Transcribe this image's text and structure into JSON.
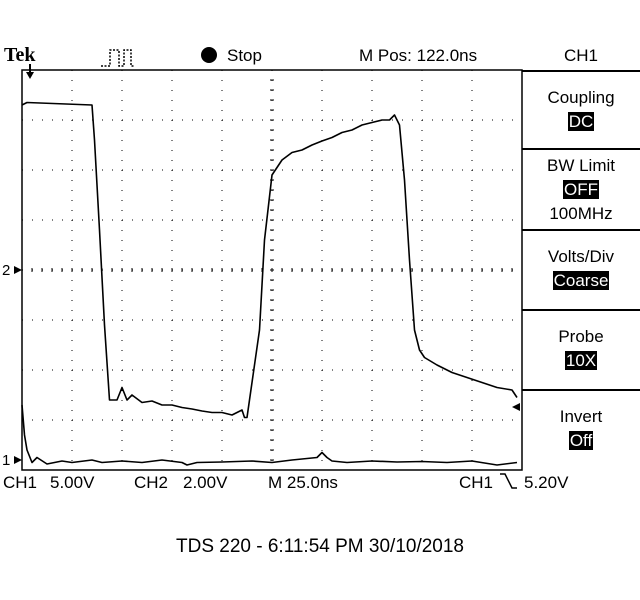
{
  "header": {
    "brand": "Tek",
    "run_state": "Stop",
    "m_pos": "M Pos: 122.0ns",
    "channel": "CH1"
  },
  "menu": [
    {
      "title": "Coupling",
      "value": "DC",
      "sub": ""
    },
    {
      "title": "BW Limit",
      "value": "OFF",
      "sub": "100MHz"
    },
    {
      "title": "Volts/Div",
      "value": "Coarse",
      "sub": ""
    },
    {
      "title": "Probe",
      "value": "10X",
      "sub": ""
    },
    {
      "title": "Invert",
      "value": "Off",
      "sub": ""
    }
  ],
  "markers": {
    "ch2_ref": "2",
    "ch1_ref": "1"
  },
  "footer": {
    "ch1_label": "CH1",
    "ch1_scale": "5.00V",
    "ch2_label": "CH2",
    "ch2_scale": "2.00V",
    "timebase": "M 25.0ns",
    "trig_source": "CH1",
    "trig_slope": "\\",
    "trig_level": "5.20V"
  },
  "caption": "TDS 220 - 6:11:54 PM   30/10/2018",
  "colors": {
    "trace": "#000000",
    "background": "#ffffff",
    "grid": "#000000"
  },
  "chart_data": {
    "type": "line",
    "x_unit": "divisions",
    "xlim": [
      0,
      10
    ],
    "ylim": [
      -4,
      4
    ],
    "series": [
      {
        "x": [
          0,
          0.1,
          1.4,
          1.45,
          1.55,
          1.65,
          1.75,
          1.9,
          2.0,
          2.1,
          2.2,
          2.4,
          2.6,
          2.8,
          3.0,
          3.2,
          3.4,
          3.6,
          3.8,
          4.0,
          4.2,
          4.4,
          4.45,
          4.5,
          4.55,
          4.75,
          4.85,
          5.0,
          5.2,
          5.4,
          5.6,
          5.8,
          6.0,
          6.2,
          6.4,
          6.6,
          6.8,
          7.0,
          7.2,
          7.35,
          7.45,
          7.55,
          7.65,
          7.75,
          7.85,
          7.95,
          8.05,
          8.3,
          8.6,
          8.9,
          9.2,
          9.5,
          9.8,
          9.9
        ],
        "y": [
          3.3,
          3.35,
          3.3,
          2.6,
          0.8,
          -1.1,
          -2.6,
          -2.6,
          -2.35,
          -2.6,
          -2.5,
          -2.65,
          -2.62,
          -2.7,
          -2.7,
          -2.75,
          -2.78,
          -2.82,
          -2.85,
          -2.85,
          -2.9,
          -2.8,
          -2.95,
          -2.95,
          -2.6,
          -1.2,
          0.6,
          1.9,
          2.2,
          2.35,
          2.4,
          2.5,
          2.58,
          2.65,
          2.75,
          2.8,
          2.9,
          2.95,
          3.0,
          3.0,
          3.1,
          2.9,
          1.8,
          0.2,
          -1.2,
          -1.6,
          -1.75,
          -1.9,
          -2.05,
          -2.15,
          -2.25,
          -2.35,
          -2.4,
          -2.55
        ]
      },
      {
        "x": [
          0,
          0.05,
          0.1,
          0.2,
          0.3,
          0.5,
          0.8,
          1.0,
          1.4,
          1.6,
          2.0,
          2.4,
          2.8,
          3.2,
          3.3,
          3.5,
          4.0,
          4.6,
          5.0,
          5.4,
          5.9,
          6.0,
          6.1,
          6.2,
          6.5,
          7.0,
          7.5,
          8.0,
          8.5,
          9.0,
          9.5,
          9.9
        ],
        "y": [
          -2.7,
          -3.3,
          -3.6,
          -3.85,
          -3.75,
          -3.88,
          -3.82,
          -3.85,
          -3.8,
          -3.85,
          -3.82,
          -3.85,
          -3.8,
          -3.85,
          -3.9,
          -3.85,
          -3.84,
          -3.82,
          -3.85,
          -3.8,
          -3.75,
          -3.65,
          -3.75,
          -3.82,
          -3.85,
          -3.82,
          -3.84,
          -3.83,
          -3.85,
          -3.82,
          -3.9,
          -3.85
        ]
      }
    ],
    "grid": true
  }
}
